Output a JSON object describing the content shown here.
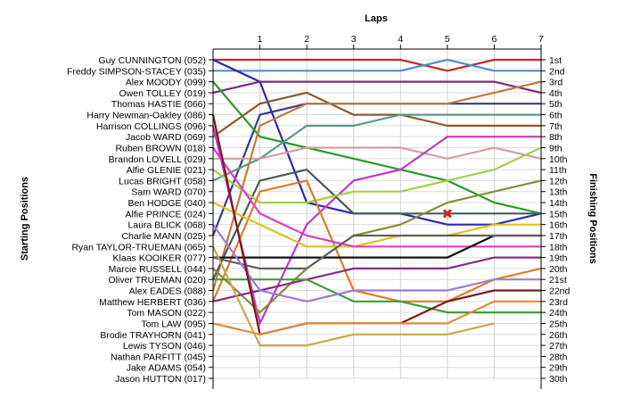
{
  "chart_data": {
    "type": "line",
    "title": "Laps",
    "xlabel": "Laps",
    "ylabel_left": "Starting Positions",
    "ylabel_right": "Finishing Positions",
    "x_ticks": [
      1,
      2,
      3,
      4,
      5,
      6,
      7
    ],
    "x_range": [
      0,
      7
    ],
    "y_range": [
      1,
      30
    ],
    "grid": true,
    "starting_positions": [
      "Guy CUNNINGTON (052)",
      "Freddy SIMPSON-STACEY (035)",
      "Alex MOODY (099)",
      "Owen TOLLEY (019)",
      "Thomas HASTIE (066)",
      "Harry Newman-Oakley (086)",
      "Harrison COLLINGS (096)",
      "Jacob WARD (069)",
      "Ruben BROWN (018)",
      "Brandon LOVELL (029)",
      "Alfie GLENIE (021)",
      "Lucas BRIGHT (058)",
      "Sam WARD (070)",
      "Ben HODGE (040)",
      "Alfie PRINCE (024)",
      "Laura BLICK (068)",
      "Charlie MANN (025)",
      "Ryan TAYLOR-TRUEMAN (065)",
      "Klaas KOOIKER (077)",
      "Marcie RUSSELL (044)",
      "Oliver TRUEMAN (020)",
      "Alex EADES (088)",
      "Matthew HERBERT (036)",
      "Tom MASON (022)",
      "Tom LAW (095)",
      "Brodie TRAYHORN (041)",
      "Lewis TYSON (046)",
      "Nathan PARFITT (045)",
      "Jake ADAMS (054)",
      "Jason HUTTON (017)"
    ],
    "finishing_positions": [
      "1st",
      "2nd",
      "3rd",
      "4th",
      "5th",
      "6th",
      "7th",
      "8th",
      "9th",
      "10th",
      "11th",
      "12th",
      "13th",
      "14th",
      "15th",
      "16th",
      "17th",
      "18th",
      "19th",
      "20th",
      "21st",
      "22nd",
      "23rd",
      "24th",
      "25th",
      "26th",
      "27th",
      "28th",
      "29th",
      "30th"
    ],
    "series": [
      {
        "color": "#c0282c",
        "values": [
          1,
          1,
          1,
          1,
          1,
          2,
          1,
          1
        ]
      },
      {
        "color": "#4a8fd0",
        "values": [
          2,
          2,
          2,
          2,
          2,
          1,
          2,
          2
        ]
      },
      {
        "color": "#2a2ab0",
        "values": [
          1,
          3,
          14,
          15,
          15,
          16,
          16,
          15
        ]
      },
      {
        "color": "#7a2a7a",
        "values": [
          4,
          3,
          3,
          3,
          3,
          3,
          3,
          4
        ]
      },
      {
        "color": "#3a3a8a",
        "values": [
          17,
          6,
          5,
          5,
          5,
          5,
          5,
          5
        ]
      },
      {
        "color": "#8a5a2a",
        "values": [
          8,
          5,
          4,
          6,
          6,
          7,
          7,
          7
        ]
      },
      {
        "color": "#2a9a2a",
        "values": [
          3,
          8,
          9,
          10,
          11,
          12,
          14,
          15
        ]
      },
      {
        "color": "#5a9a8a",
        "values": [
          12,
          10,
          7,
          7,
          6,
          6,
          6,
          6
        ]
      },
      {
        "color": "#d0a0a0",
        "values": [
          10,
          10,
          9,
          9,
          9,
          10,
          9,
          10
        ]
      },
      {
        "color": "#c07a3a",
        "values": [
          22,
          7,
          5,
          5,
          5,
          5,
          4,
          3
        ]
      },
      {
        "color": "#c03ac0",
        "values": [
          7,
          25,
          16,
          12,
          11,
          8,
          8,
          8
        ]
      },
      {
        "color": "#4a5a5a",
        "values": [
          21,
          12,
          11,
          15,
          15,
          15,
          15,
          15
        ]
      },
      {
        "color": "#a0d048",
        "values": [
          11,
          14,
          14,
          13,
          13,
          12,
          11,
          9
        ]
      },
      {
        "color": "#8a8a3a",
        "values": [
          20,
          24,
          20,
          17,
          16,
          14,
          13,
          12
        ]
      },
      {
        "color": "#e07a2a",
        "values": [
          23,
          13,
          12,
          22,
          23,
          23,
          21,
          20
        ]
      },
      {
        "color": "#e0c020",
        "values": [
          14,
          16,
          18,
          18,
          17,
          17,
          16,
          16
        ]
      },
      {
        "color": "#e03ad0",
        "values": [
          9,
          15,
          17,
          18,
          18,
          18,
          18,
          18
        ]
      },
      {
        "color": "#111111",
        "values": [
          19,
          19,
          19,
          19,
          19,
          19,
          17,
          17
        ]
      },
      {
        "color": "#606060",
        "values": [
          19,
          20,
          20,
          17,
          17,
          17,
          17,
          17
        ]
      },
      {
        "color": "#8a2a8a",
        "values": [
          23,
          22,
          21,
          20,
          20,
          20,
          19,
          19
        ]
      },
      {
        "color": "#3aa03a",
        "values": [
          21,
          21,
          21,
          23,
          23,
          24,
          24,
          24
        ]
      },
      {
        "color": "#a07ad0",
        "values": [
          16,
          22,
          23,
          22,
          22,
          22,
          21,
          21
        ]
      },
      {
        "color": "#7a1a1a",
        "values": [
          6,
          26,
          25,
          25,
          25,
          23,
          22,
          22
        ]
      },
      {
        "color": "#e08a3a",
        "values": [
          25,
          26,
          25,
          25,
          25,
          25,
          23,
          23
        ]
      },
      {
        "color": "#c8a848",
        "values": [
          18,
          27,
          27,
          26,
          26,
          26,
          25
        ]
      }
    ],
    "annotations": [
      {
        "type": "retired-marker",
        "lap": 5,
        "position": 15,
        "color": "#cc2222"
      }
    ]
  }
}
